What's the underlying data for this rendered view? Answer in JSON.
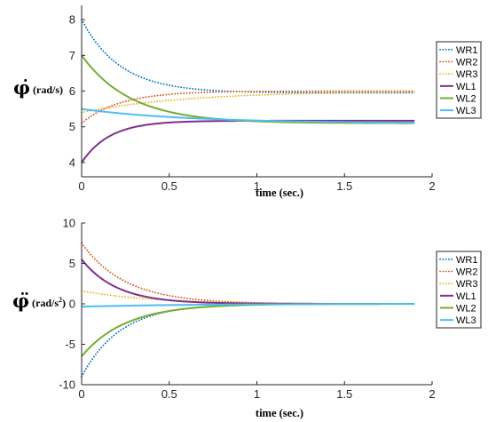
{
  "chart_data": [
    {
      "type": "line",
      "title": "",
      "xlabel": "time (sec.)",
      "ylabel_symbol": "φ̇",
      "ylabel_unit": "(rad/s)",
      "ylabel_superscript": "",
      "xlim": [
        0,
        2
      ],
      "ylim": [
        3.6,
        8.4
      ],
      "xticks": [
        0,
        0.5,
        1,
        1.5,
        2
      ],
      "xtick_labels": [
        "0",
        "0.5",
        "1",
        "1.5",
        "2"
      ],
      "yticks": [
        4,
        5,
        6,
        7,
        8
      ],
      "ytick_labels": [
        "4",
        "5",
        "6",
        "7",
        "8"
      ],
      "grid": false,
      "legend_position": "right",
      "series": [
        {
          "name": "WR1",
          "style": "dotted",
          "color": "#0072BD",
          "start": 8.0,
          "end": 5.95,
          "tau": 0.22,
          "x_end": 1.9
        },
        {
          "name": "WR2",
          "style": "dotted",
          "color": "#D95319",
          "start": 5.1,
          "end": 6.0,
          "tau": 0.22,
          "x_end": 1.9
        },
        {
          "name": "WR3",
          "style": "dotted",
          "color": "#EDB120",
          "start": 5.4,
          "end": 6.0,
          "tau": 0.6,
          "x_end": 1.9
        },
        {
          "name": "WL1",
          "style": "solid",
          "color": "#7E2F8E",
          "start": 4.0,
          "end": 5.17,
          "tau": 0.16,
          "x_end": 1.9
        },
        {
          "name": "WL2",
          "style": "solid",
          "color": "#77AC30",
          "start": 7.0,
          "end": 5.1,
          "tau": 0.28,
          "x_end": 1.9
        },
        {
          "name": "WL3",
          "style": "solid",
          "color": "#4DBEEE",
          "start": 5.5,
          "end": 5.1,
          "tau": 0.6,
          "x_end": 1.9
        }
      ]
    },
    {
      "type": "line",
      "title": "",
      "xlabel": "time (sec.)",
      "ylabel_symbol": "φ̈",
      "ylabel_unit": "(rad/s",
      "ylabel_superscript": "2",
      "xlim": [
        0,
        2
      ],
      "ylim": [
        -10,
        10
      ],
      "xticks": [
        0,
        0.5,
        1,
        1.5,
        2
      ],
      "xtick_labels": [
        "0",
        "0.5",
        "1",
        "1.5",
        "2"
      ],
      "yticks": [
        -10,
        -5,
        0,
        5,
        10
      ],
      "ytick_labels": [
        "-10",
        "-5",
        "0",
        "5",
        "10"
      ],
      "grid": false,
      "legend_position": "right",
      "series": [
        {
          "name": "WR1",
          "style": "dotted",
          "color": "#0072BD",
          "start": -9.0,
          "end": 0,
          "tau": 0.22,
          "x_end": 1.9
        },
        {
          "name": "WR2",
          "style": "dotted",
          "color": "#D95319",
          "start": 7.5,
          "end": 0,
          "tau": 0.25,
          "x_end": 1.9
        },
        {
          "name": "WR3",
          "style": "dotted",
          "color": "#EDB120",
          "start": 1.6,
          "end": 0,
          "tau": 0.4,
          "x_end": 1.9
        },
        {
          "name": "WL1",
          "style": "solid",
          "color": "#7E2F8E",
          "start": 5.5,
          "end": 0,
          "tau": 0.2,
          "x_end": 1.9
        },
        {
          "name": "WL2",
          "style": "solid",
          "color": "#77AC30",
          "start": -6.5,
          "end": 0,
          "tau": 0.25,
          "x_end": 1.9
        },
        {
          "name": "WL3",
          "style": "solid",
          "color": "#4DBEEE",
          "start": -0.35,
          "end": 0,
          "tau": 0.6,
          "x_end": 1.9
        }
      ]
    }
  ]
}
